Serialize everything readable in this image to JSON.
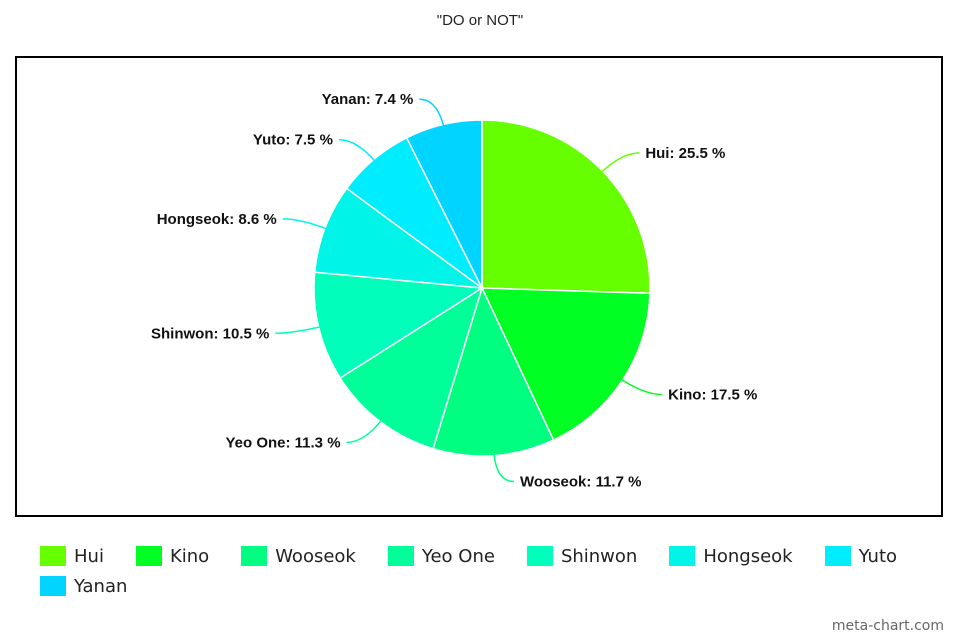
{
  "title": "\"DO or NOT\"",
  "watermark": "meta-chart.com",
  "chart_data": {
    "type": "pie",
    "title": "\"DO or NOT\"",
    "legend_position": "bottom",
    "label_suffix": " %",
    "categories": [
      "Hui",
      "Kino",
      "Wooseok",
      "Yeo One",
      "Shinwon",
      "Hongseok",
      "Yuto",
      "Yanan"
    ],
    "values": [
      25.5,
      17.5,
      11.7,
      11.3,
      10.5,
      8.6,
      7.5,
      7.4
    ],
    "colors": [
      "#66ff00",
      "#00ff22",
      "#00ff80",
      "#00ff99",
      "#00ffbb",
      "#00f4e8",
      "#00ecff",
      "#00d4ff"
    ]
  }
}
